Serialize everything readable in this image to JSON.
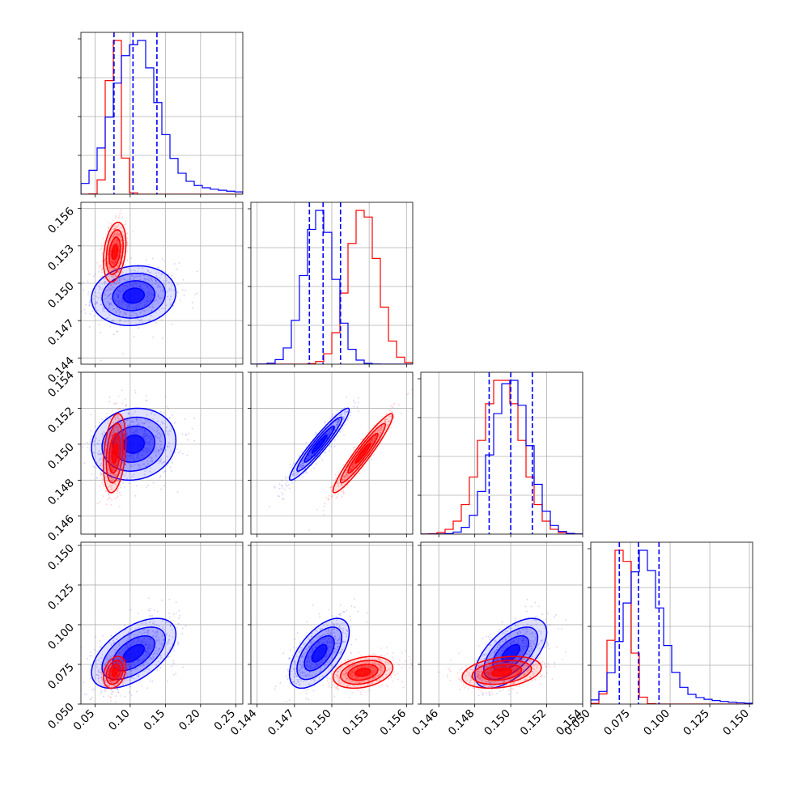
{
  "chart_data": {
    "type": "corner",
    "parameters": [
      {
        "range": [
          0.03,
          0.26
        ],
        "ticks": [
          0.05,
          0.1,
          0.15,
          0.2,
          0.25
        ],
        "tick_labels": [
          "0.05",
          "0.10",
          "0.15",
          "0.20",
          "0.25"
        ]
      },
      {
        "range": [
          0.1435,
          0.1565
        ],
        "ticks": [
          0.144,
          0.147,
          0.15,
          0.153,
          0.156
        ],
        "tick_labels": [
          "0.144",
          "0.147",
          "0.150",
          "0.153",
          "0.156"
        ]
      },
      {
        "range": [
          0.145,
          0.154
        ],
        "ticks": [
          0.146,
          0.148,
          0.15,
          0.152,
          0.154
        ],
        "tick_labels": [
          "0.146",
          "0.148",
          "0.150",
          "0.152",
          "0.154"
        ]
      },
      {
        "range": [
          0.05,
          0.152
        ],
        "ticks": [
          0.05,
          0.075,
          0.1,
          0.125,
          0.15
        ],
        "tick_labels": [
          "0.050",
          "0.075",
          "0.100",
          "0.125",
          "0.150"
        ]
      }
    ],
    "series": [
      {
        "color": "#0000ff",
        "mean": [
          0.105,
          0.149,
          0.15,
          0.082
        ],
        "sigma": [
          0.03,
          0.0012,
          0.001,
          0.011
        ],
        "quantiles": [
          [
            0.077,
            0.104,
            0.138
          ],
          [
            0.1482,
            0.1493,
            0.1507
          ],
          [
            0.1488,
            0.15,
            0.1512
          ],
          [
            0.068,
            0.08,
            0.093
          ]
        ]
      },
      {
        "color": "#ff0000",
        "mean": [
          0.078,
          0.1525,
          0.1495,
          0.07
        ],
        "sigma": [
          0.008,
          0.0012,
          0.0011,
          0.005
        ]
      }
    ],
    "correlations": {
      "1-2": 0.95,
      "0-3": 0.55,
      "1-3": 0.6,
      "2-3": 0.6
    },
    "grid": true
  }
}
